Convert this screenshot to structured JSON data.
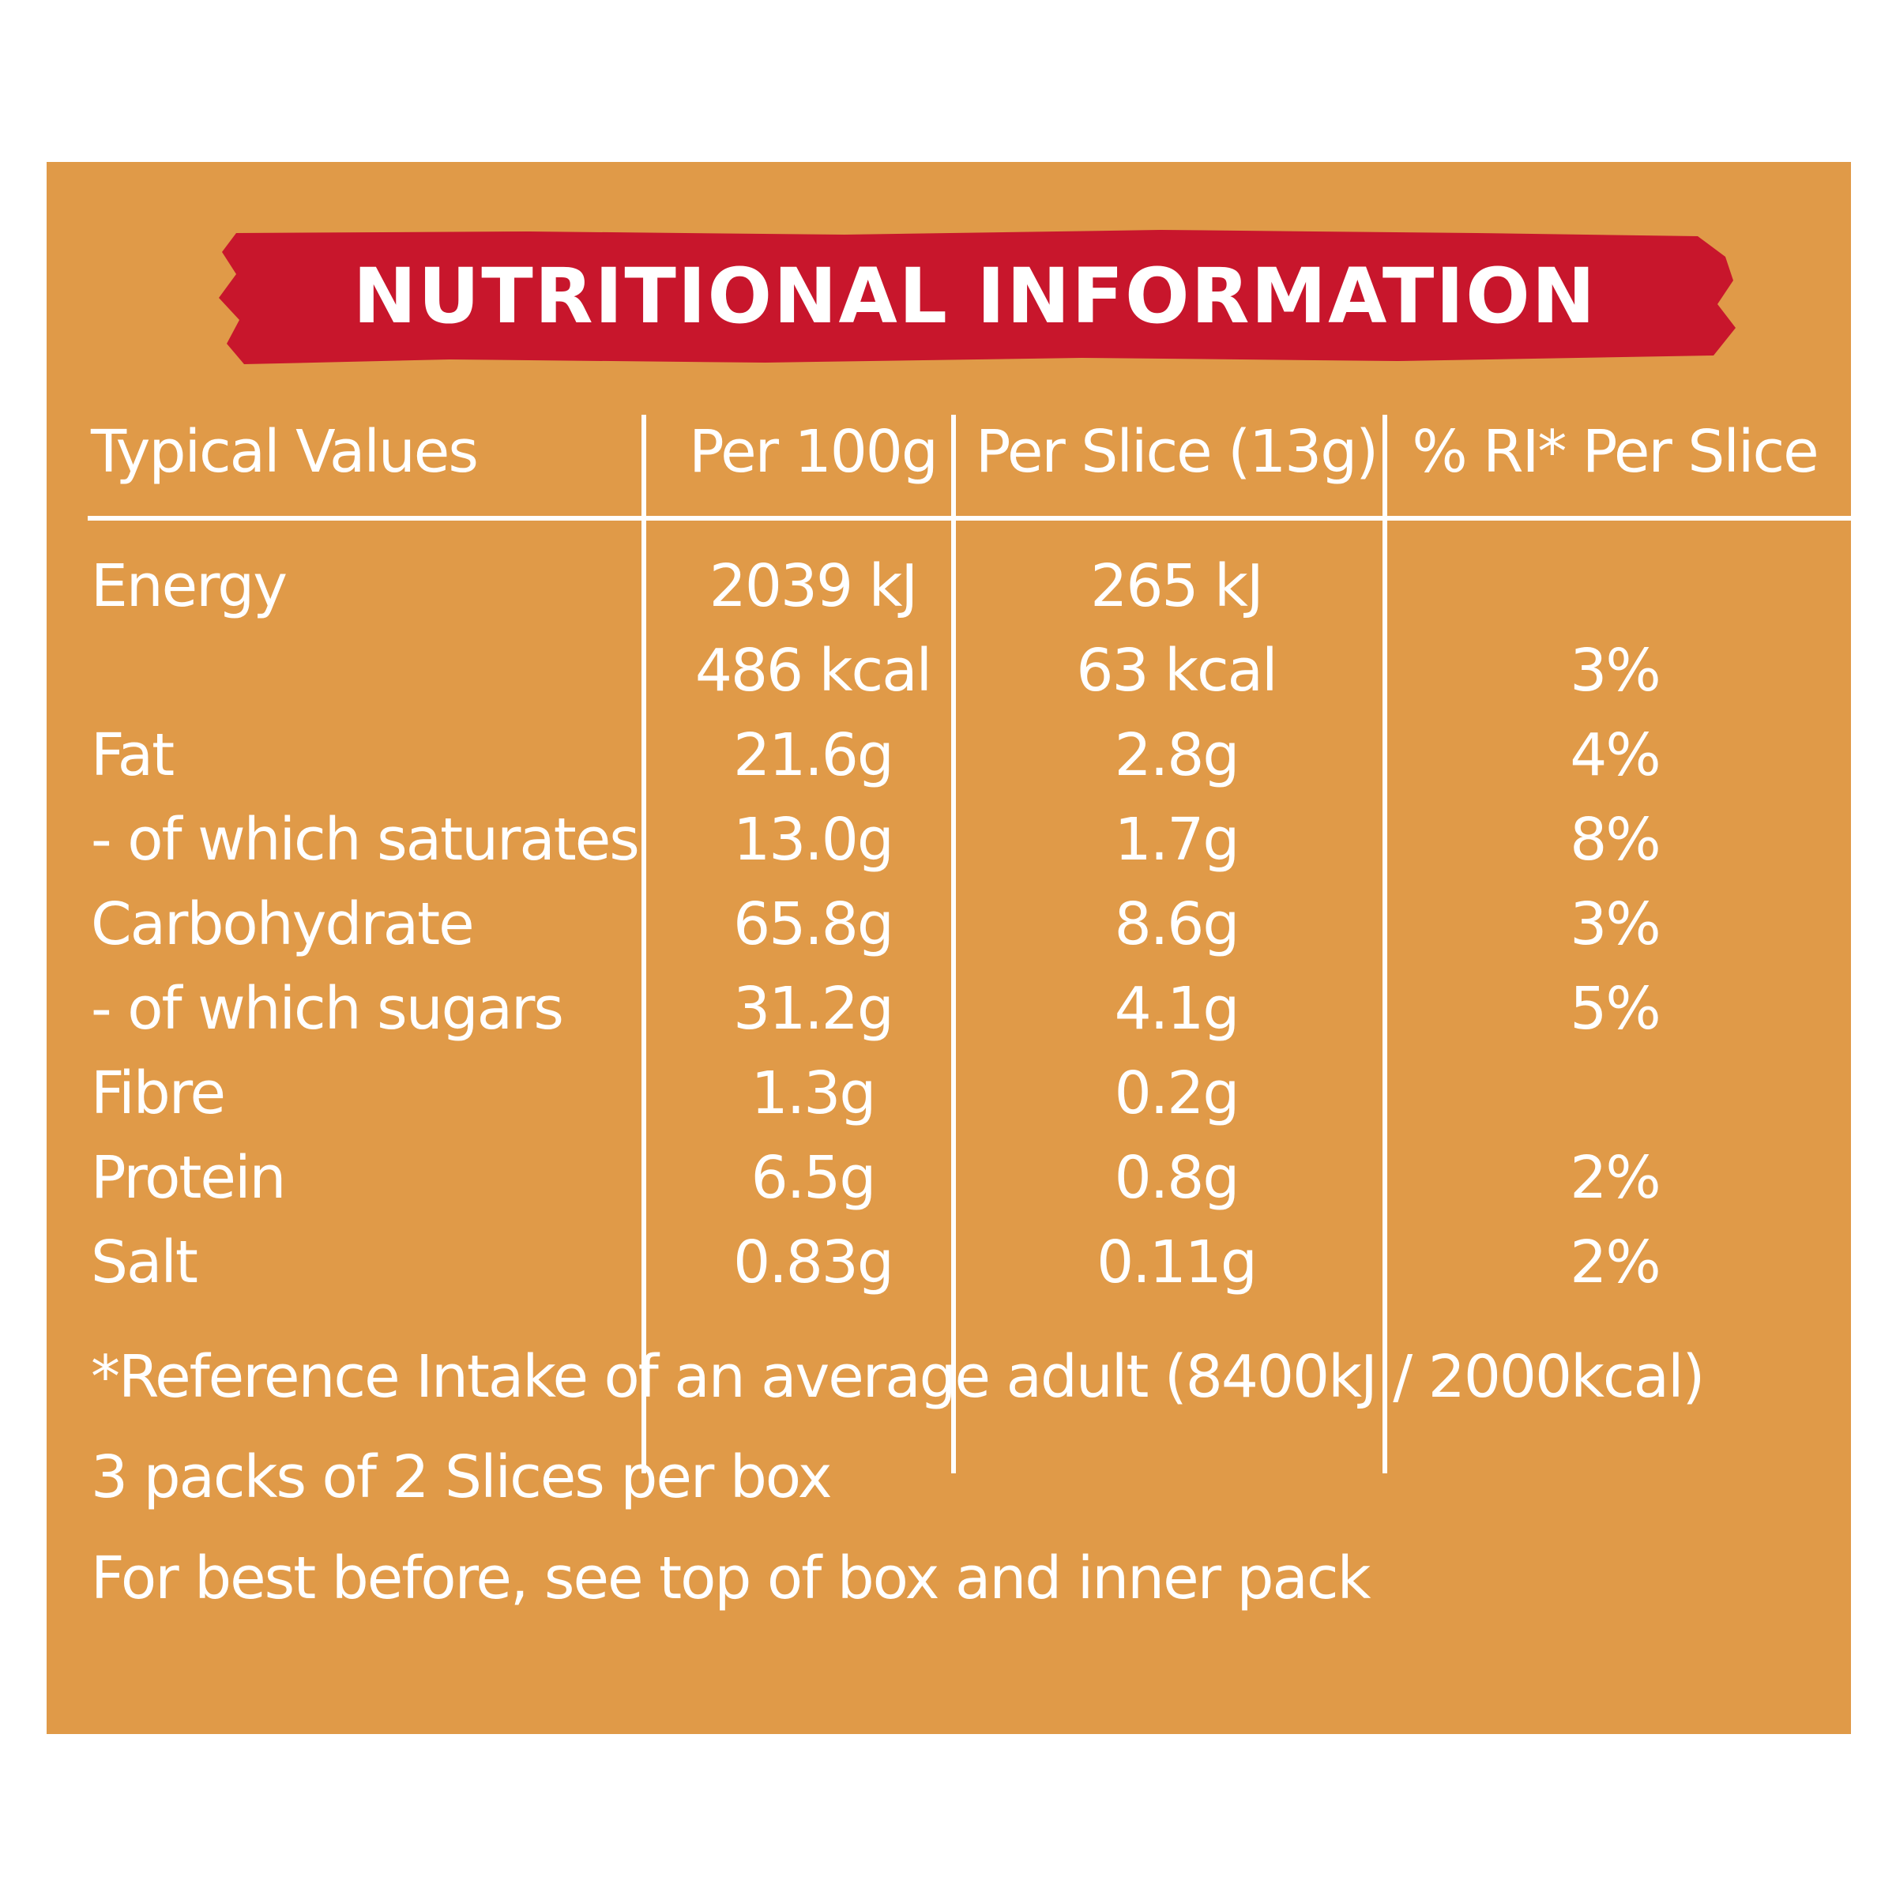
{
  "colors": {
    "panel": "#e09a48",
    "banner": "#c8162c",
    "text": "#ffffff"
  },
  "title": "NUTRITIONAL INFORMATION",
  "headers": {
    "label": "Typical Values",
    "per100": "Per 100g",
    "perSlice": "Per Slice (13g)",
    "ri": "% RI* Per Slice"
  },
  "rows": [
    {
      "label": "Energy",
      "per100": "2039 kJ",
      "perSlice": "265 kJ",
      "ri": ""
    },
    {
      "label": "",
      "per100": "486 kcal",
      "perSlice": "63 kcal",
      "ri": "3%"
    },
    {
      "label": "Fat",
      "per100": "21.6g",
      "perSlice": "2.8g",
      "ri": "4%"
    },
    {
      "label": "- of which saturates",
      "per100": "13.0g",
      "perSlice": "1.7g",
      "ri": "8%"
    },
    {
      "label": "Carbohydrate",
      "per100": "65.8g",
      "perSlice": "8.6g",
      "ri": "3%"
    },
    {
      "label": "- of which sugars",
      "per100": "31.2g",
      "perSlice": "4.1g",
      "ri": "5%"
    },
    {
      "label": "Fibre",
      "per100": "1.3g",
      "perSlice": "0.2g",
      "ri": ""
    },
    {
      "label": "Protein",
      "per100": "6.5g",
      "perSlice": "0.8g",
      "ri": "2%"
    },
    {
      "label": "Salt",
      "per100": "0.83g",
      "perSlice": "0.11g",
      "ri": "2%"
    }
  ],
  "footnotes": {
    "reference": "*Reference Intake of an average adult (8400kJ / 2000kcal)",
    "packs": "3 packs of 2 Slices per box",
    "bestBefore": "For best before, see top of box and inner pack"
  }
}
